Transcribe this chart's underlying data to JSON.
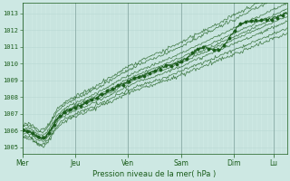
{
  "background_color": "#cde8e3",
  "plot_bg_color": "#cde8e3",
  "line_color": "#1a5c1a",
  "grid_minor_color": "#b8d8d3",
  "grid_major_color": "#a0c4be",
  "tick_major_color": "#8aaba6",
  "ylabel_ticks": [
    1005,
    1006,
    1007,
    1008,
    1009,
    1010,
    1011,
    1012,
    1013
  ],
  "ylim": [
    1004.6,
    1013.6
  ],
  "xlabel": "Pression niveau de la mer( hPa )",
  "day_labels": [
    "Mer",
    "Jeu",
    "Ven",
    "Sam",
    "Dim",
    "Lu"
  ],
  "day_positions": [
    0.0,
    0.2,
    0.4,
    0.6,
    0.8,
    0.95
  ],
  "figsize": [
    3.2,
    2.0
  ],
  "dpi": 100
}
